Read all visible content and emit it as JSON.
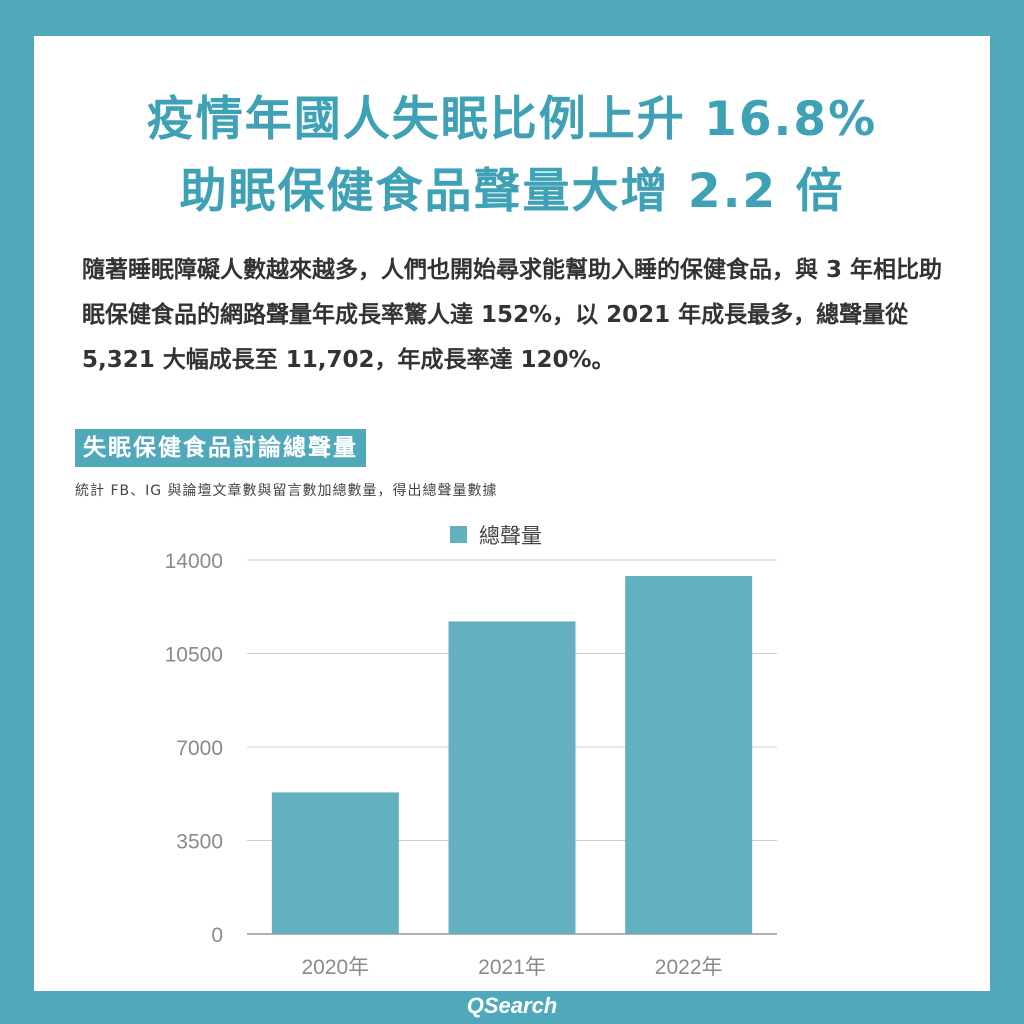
{
  "title_lines": [
    "疫情年國人失眠比例上升 16.8%",
    "助眠保健食品聲量大增 2.2 倍"
  ],
  "intro": "隨著睡眠障礙人數越來越多，人們也開始尋求能幫助入睡的保健食品，與 3 年相比助眠保健食品的網路聲量年成長率驚人達 152%，以 2021 年成長最多，總聲量從 5,321 大幅成長至 11,702，年成長率達 120%。",
  "section_label": "失眠保健食品討論總聲量",
  "note": "統計 FB、IG 與論壇文章數與留言數加總數量，得出總聲量數據",
  "brand": "QSearch",
  "colors": {
    "background": "#4fa9bb",
    "accent": "#3fa1b6",
    "bar": "#62b0c0",
    "grid": "#cccccc",
    "axis_text": "#8a8a8a"
  },
  "chart_data": {
    "type": "bar",
    "categories": [
      "2020年",
      "2021年",
      "2022年"
    ],
    "series": [
      {
        "name": "總聲量",
        "values": [
          5300,
          11700,
          13400
        ]
      }
    ],
    "yticks": [
      0,
      3500,
      7000,
      10500,
      14000
    ],
    "ylim": [
      0,
      14000
    ],
    "grid": true,
    "legend": "top-center"
  }
}
